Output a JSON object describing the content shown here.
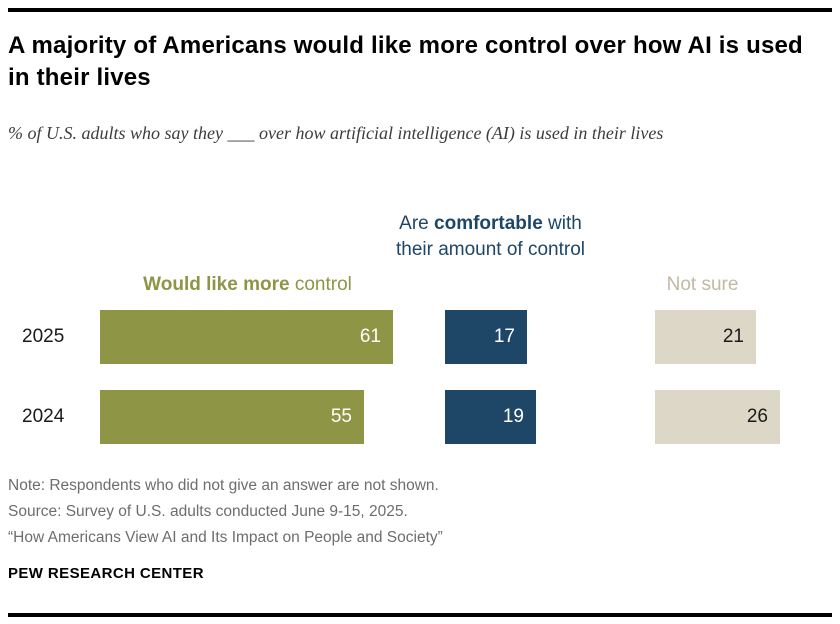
{
  "page": {
    "title": "A majority of Americans would like more control over how AI is used in their lives",
    "subtitle": "% of U.S. adults who say they ___ over how artificial intelligence (AI) is used in their lives",
    "notes": [
      "Note: Respondents who did not give an answer are not shown.",
      "Source: Survey of U.S. adults conducted June 9-15, 2025.",
      "“How Americans View AI and Its Impact on People and Society”"
    ],
    "footer": "PEW RESEARCH CENTER"
  },
  "chart_data": {
    "type": "bar",
    "orientation": "horizontal",
    "title": "A majority of Americans would like more control over how AI is used in their lives",
    "categories": [
      "2025",
      "2024"
    ],
    "series": [
      {
        "name": "Would like more control",
        "header": {
          "prefix": "",
          "bold": "Would like more",
          "suffix": " control"
        },
        "color": "#8e9545",
        "header_color": "#8e9545",
        "value_color": "#ffffff",
        "values": [
          61,
          55
        ]
      },
      {
        "name": "Are comfortable with their amount of control",
        "header": {
          "prefix": "Are ",
          "bold": "comfortable",
          "suffix": " with their amount of control"
        },
        "color": "#1e4666",
        "header_color": "#1e4666",
        "value_color": "#ffffff",
        "values": [
          17,
          19
        ]
      },
      {
        "name": "Not sure",
        "header": {
          "prefix": "Not sure",
          "bold": "",
          "suffix": ""
        },
        "color": "#dcd7c7",
        "header_color": "#c0b9a4",
        "value_color": "#1a1a1a",
        "values": [
          21,
          26
        ]
      }
    ],
    "xlim": [
      0,
      100
    ],
    "value_labels": "inside-end",
    "legend_position": "column-headers",
    "grid": false
  }
}
